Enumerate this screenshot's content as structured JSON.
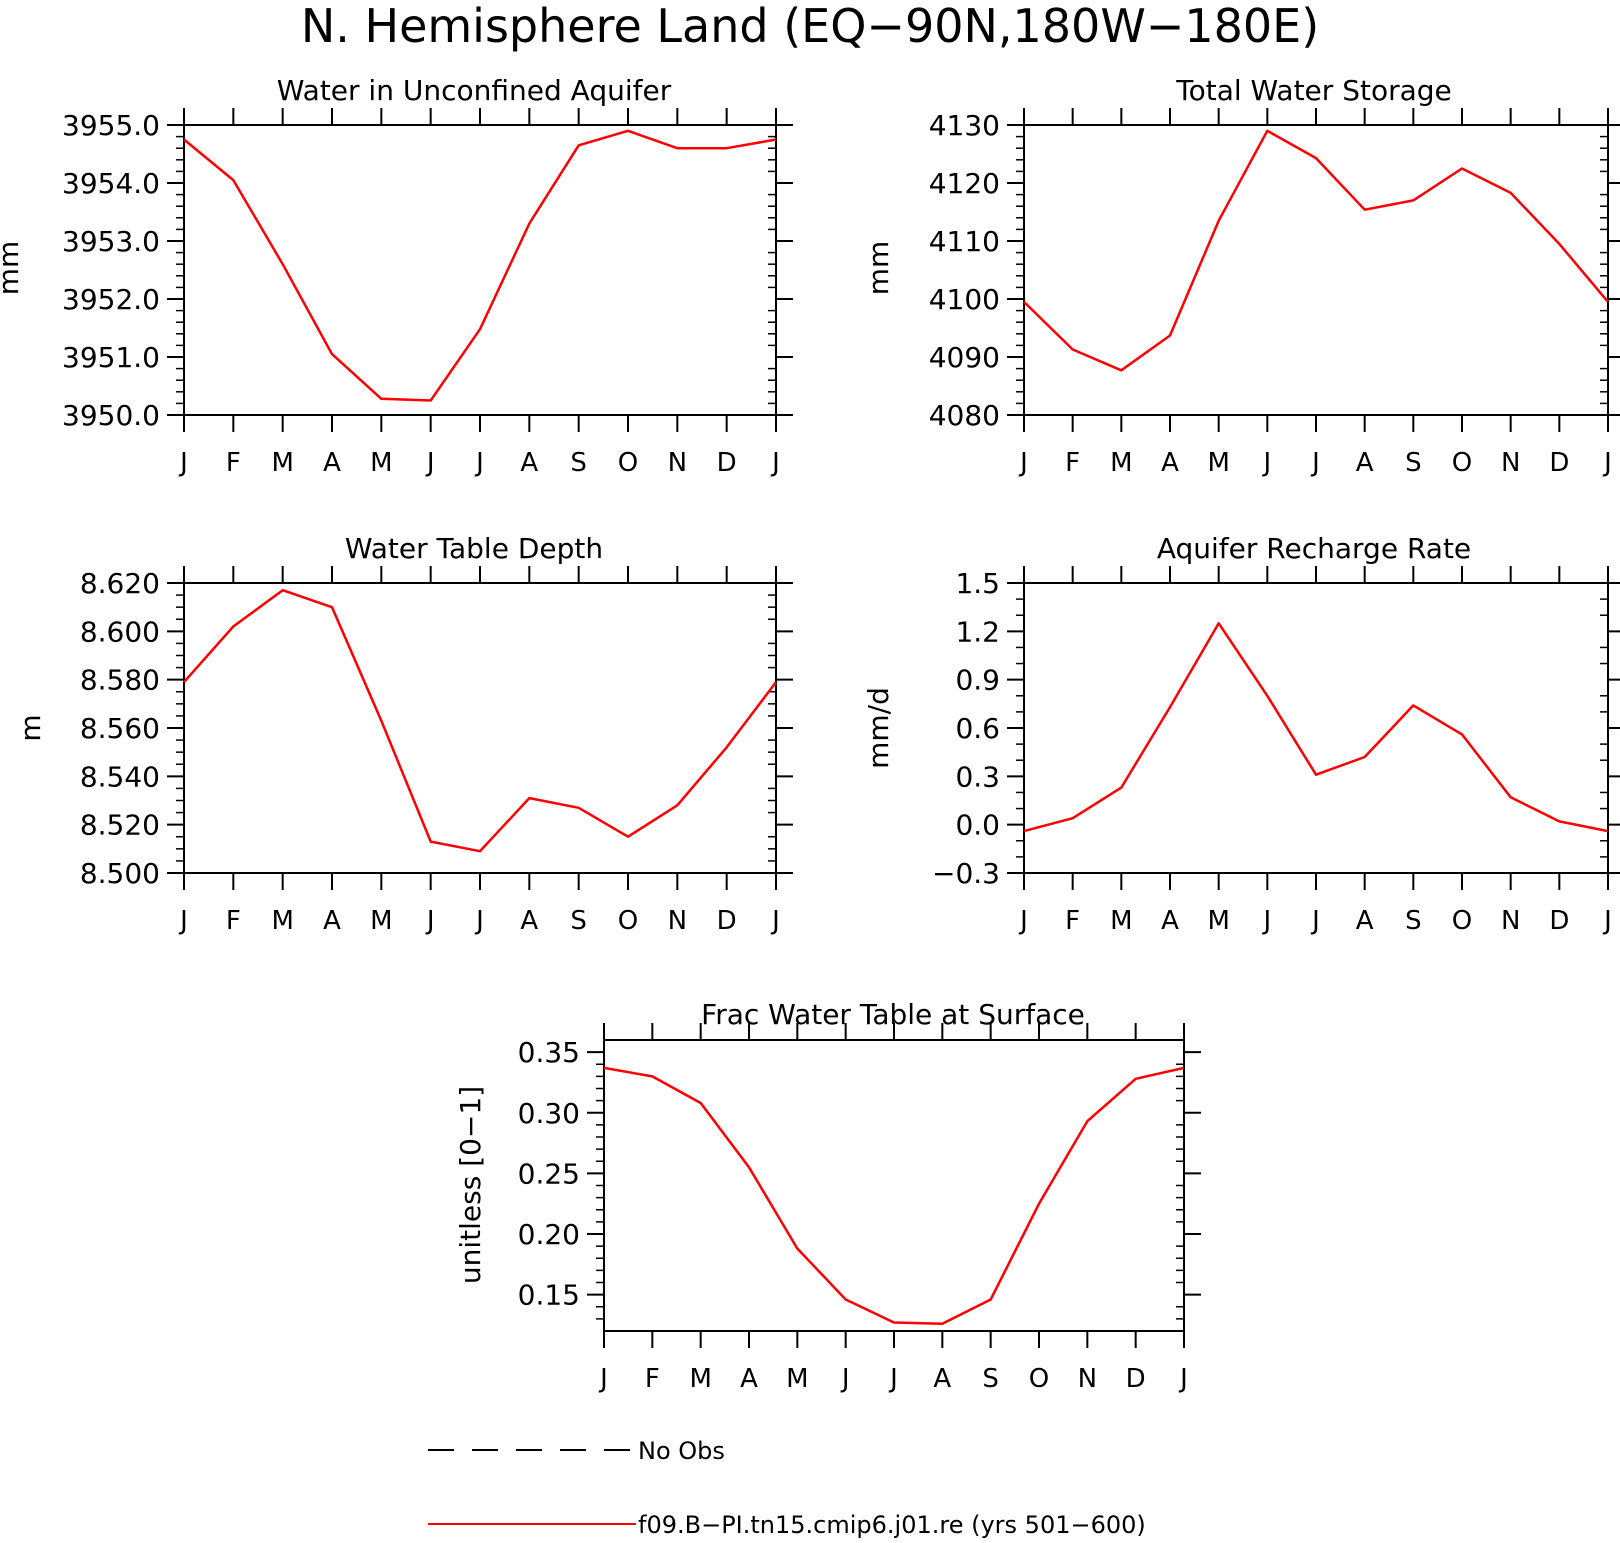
{
  "title": "N. Hemisphere Land (EQ−90N,180W−180E)",
  "colors": {
    "series": "#ff0000",
    "obs": "#000000",
    "axes": "#000000"
  },
  "legend": {
    "obs_label": "No Obs",
    "series_label": "f09.B−PI.tn15.cmip6.j01.re (yrs 501−600)"
  },
  "chart_data": [
    {
      "type": "line",
      "title": "Water in Unconfined Aquifer",
      "ylabel": "mm",
      "ylim": [
        3950.0,
        3955.0
      ],
      "yticks": [
        3950.0,
        3951.0,
        3952.0,
        3953.0,
        3954.0,
        3955.0
      ],
      "ytick_labels": [
        "3950.0",
        "3951.0",
        "3952.0",
        "3953.0",
        "3954.0",
        "3955.0"
      ],
      "yminor_per_major": 5,
      "categories": [
        "J",
        "F",
        "M",
        "A",
        "M",
        "J",
        "J",
        "A",
        "S",
        "O",
        "N",
        "D",
        "J"
      ],
      "series": [
        {
          "name": "f09.B−PI.tn15.cmip6.j01.re (yrs 501−600)",
          "values": [
            3954.75,
            3954.05,
            3952.6,
            3951.05,
            3950.28,
            3950.25,
            3951.48,
            3953.3,
            3954.65,
            3954.9,
            3954.6,
            3954.6,
            3954.75
          ]
        }
      ]
    },
    {
      "type": "line",
      "title": "Total Water Storage",
      "ylabel": "mm",
      "ylim": [
        4080,
        4130
      ],
      "yticks": [
        4080,
        4090,
        4100,
        4110,
        4120,
        4130
      ],
      "ytick_labels": [
        "4080",
        "4090",
        "4100",
        "4110",
        "4120",
        "4130"
      ],
      "yminor_per_major": 5,
      "categories": [
        "J",
        "F",
        "M",
        "A",
        "M",
        "J",
        "J",
        "A",
        "S",
        "O",
        "N",
        "D",
        "J"
      ],
      "series": [
        {
          "name": "f09.B−PI.tn15.cmip6.j01.re (yrs 501−600)",
          "values": [
            4099.5,
            4091.3,
            4087.7,
            4093.7,
            4113.5,
            4129.0,
            4124.3,
            4115.4,
            4117.0,
            4122.5,
            4118.3,
            4109.5,
            4099.5
          ]
        }
      ]
    },
    {
      "type": "line",
      "title": "Water Table Depth",
      "ylabel": "m",
      "ylim": [
        8.5,
        8.62
      ],
      "yticks": [
        8.5,
        8.52,
        8.54,
        8.56,
        8.58,
        8.6,
        8.62
      ],
      "ytick_labels": [
        "8.500",
        "8.520",
        "8.540",
        "8.560",
        "8.580",
        "8.600",
        "8.620"
      ],
      "yminor_per_major": 4,
      "categories": [
        "J",
        "F",
        "M",
        "A",
        "M",
        "J",
        "J",
        "A",
        "S",
        "O",
        "N",
        "D",
        "J"
      ],
      "series": [
        {
          "name": "f09.B−PI.tn15.cmip6.j01.re (yrs 501−600)",
          "values": [
            8.579,
            8.602,
            8.617,
            8.61,
            8.563,
            8.513,
            8.509,
            8.531,
            8.527,
            8.515,
            8.528,
            8.552,
            8.579
          ]
        }
      ]
    },
    {
      "type": "line",
      "title": "Aquifer Recharge Rate",
      "ylabel": "mm/d",
      "ylim": [
        -0.3,
        1.5
      ],
      "yticks": [
        -0.3,
        0.0,
        0.3,
        0.6,
        0.9,
        1.2,
        1.5
      ],
      "ytick_labels": [
        "−0.3",
        "0.0",
        "0.3",
        "0.6",
        "0.9",
        "1.2",
        "1.5"
      ],
      "yminor_per_major": 3,
      "categories": [
        "J",
        "F",
        "M",
        "A",
        "M",
        "J",
        "J",
        "A",
        "S",
        "O",
        "N",
        "D",
        "J"
      ],
      "series": [
        {
          "name": "f09.B−PI.tn15.cmip6.j01.re (yrs 501−600)",
          "values": [
            -0.04,
            0.04,
            0.23,
            0.73,
            1.25,
            0.8,
            0.31,
            0.42,
            0.74,
            0.56,
            0.17,
            0.02,
            -0.04
          ]
        }
      ]
    },
    {
      "type": "line",
      "title": "Frac Water Table at Surface",
      "ylabel": "unitless [0−1]",
      "ylim": [
        0.12,
        0.36
      ],
      "yticks": [
        0.15,
        0.2,
        0.25,
        0.3,
        0.35
      ],
      "ytick_labels": [
        "0.15",
        "0.20",
        "0.25",
        "0.30",
        "0.35"
      ],
      "yminor_per_major": 5,
      "categories": [
        "J",
        "F",
        "M",
        "A",
        "M",
        "J",
        "J",
        "A",
        "S",
        "O",
        "N",
        "D",
        "J"
      ],
      "series": [
        {
          "name": "f09.B−PI.tn15.cmip6.j01.re (yrs 501−600)",
          "values": [
            0.337,
            0.33,
            0.308,
            0.255,
            0.188,
            0.146,
            0.127,
            0.126,
            0.146,
            0.225,
            0.293,
            0.328,
            0.337
          ]
        }
      ]
    }
  ]
}
